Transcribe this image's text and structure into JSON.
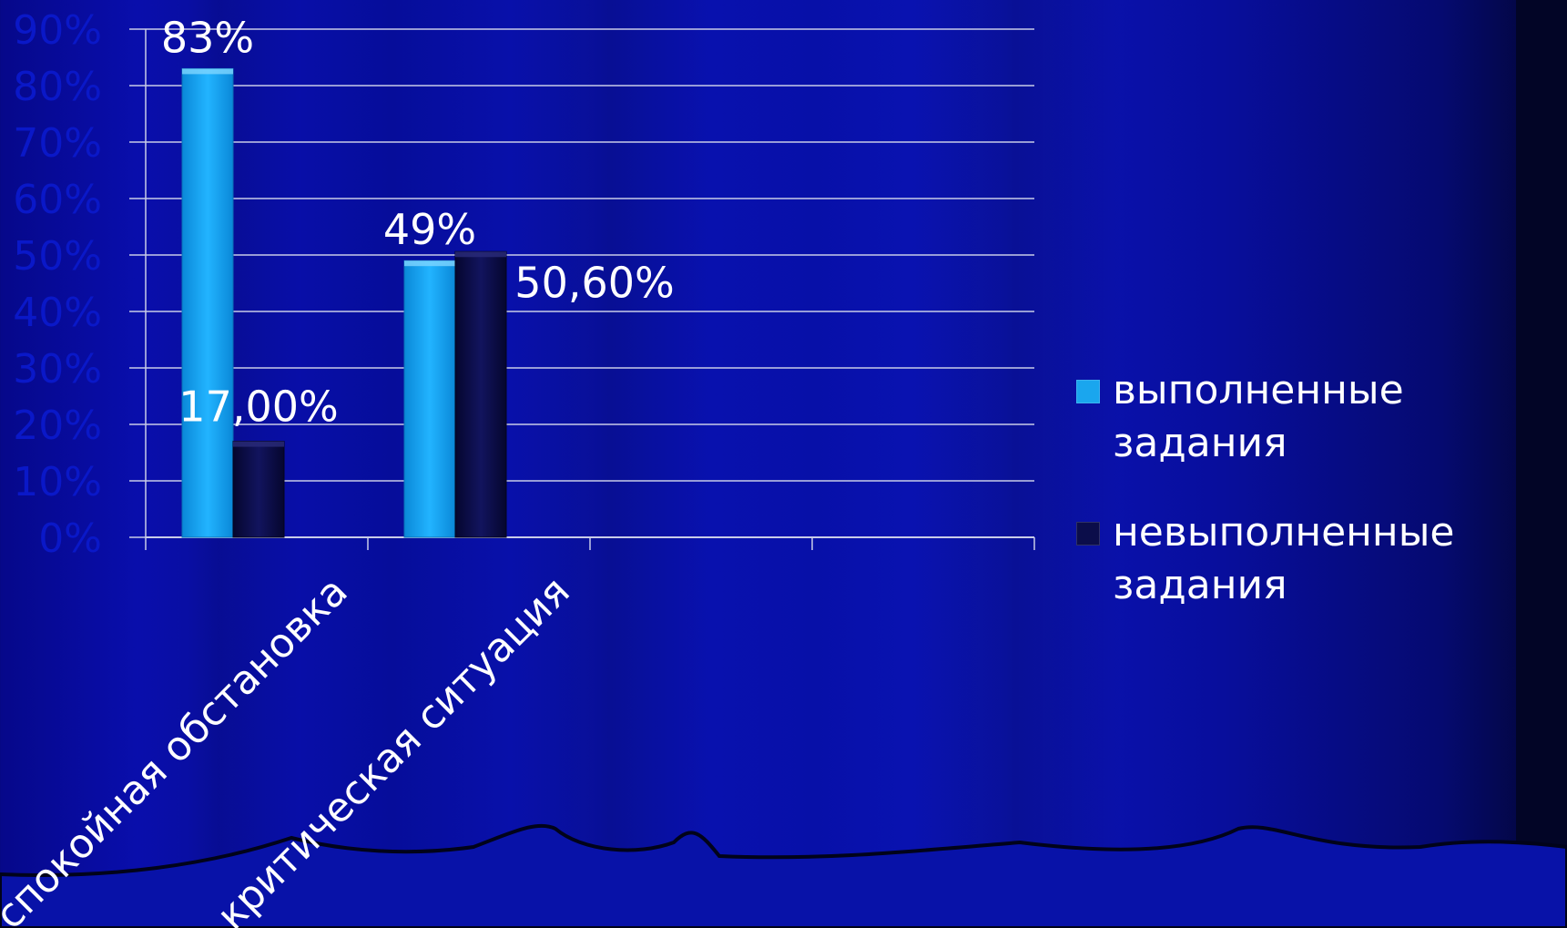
{
  "chart_data": {
    "type": "bar",
    "categories": [
      "спокойная обстановка",
      "критическая ситуация"
    ],
    "extra_category_slots": 2,
    "series": [
      {
        "name": "выполненные задания",
        "values": [
          0.83,
          0.49
        ],
        "labels": [
          "83%",
          "49%"
        ],
        "color": "#1aa6ee"
      },
      {
        "name": "невыполненные задания",
        "values": [
          0.17,
          0.506
        ],
        "labels": [
          "17,00%",
          "50,60%"
        ],
        "color": "#0b0d4a"
      }
    ],
    "yticks": [
      "0%",
      "10%",
      "20%",
      "30%",
      "40%",
      "50%",
      "60%",
      "70%",
      "80%",
      "90%"
    ],
    "ylim": [
      0,
      0.9
    ],
    "grid": true,
    "legend": "right",
    "tick_color": "#0a18c8",
    "label_color": "#ffffff",
    "grid_color": "#c8cce8"
  }
}
